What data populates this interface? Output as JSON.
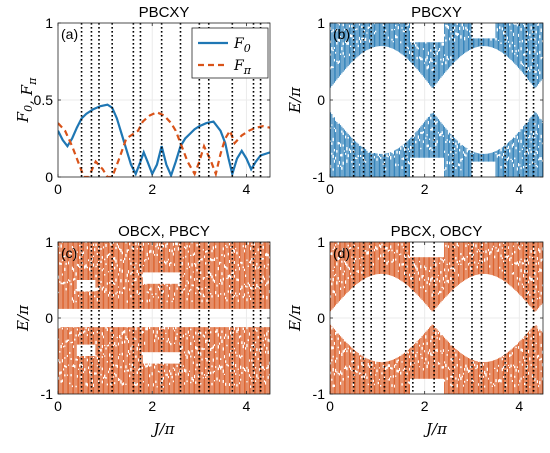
{
  "colors": {
    "blue": "#1f77b4",
    "orange": "#d95319",
    "black": "#000000"
  },
  "xlabel": "J/π",
  "xticks": [
    0,
    2,
    4
  ],
  "xlim": [
    0,
    4.5
  ],
  "vlines": [
    0.5,
    0.71,
    0.87,
    1.15,
    1.6,
    1.75,
    2.2,
    2.6,
    3.0,
    3.2,
    3.7,
    4.15,
    4.3
  ],
  "chart_data": [
    {
      "type": "line",
      "panel_label": "(a)",
      "title": "PBCXY",
      "ylabel": "F_0, F_π",
      "ylim": [
        0,
        1
      ],
      "yticks": [
        {
          "v": 0,
          "label": "0"
        },
        {
          "v": 0.5,
          "label": "0.5"
        },
        {
          "v": 1,
          "label": "1"
        }
      ],
      "legend_position": "top-right",
      "series": [
        {
          "name": "F0",
          "legend_text": "F_0",
          "style": "solid",
          "color": "#1f77b4",
          "x": [
            0,
            0.1,
            0.2,
            0.3,
            0.4,
            0.5,
            0.6,
            0.75,
            0.9,
            1.05,
            1.15,
            1.25,
            1.35,
            1.45,
            1.55,
            1.65,
            1.75,
            1.82,
            1.9,
            2.0,
            2.1,
            2.2,
            2.3,
            2.4,
            2.5,
            2.6,
            2.7,
            2.8,
            2.9,
            3.0,
            3.15,
            3.3,
            3.45,
            3.55,
            3.62,
            3.7,
            3.8,
            3.9,
            4.0,
            4.1,
            4.2,
            4.3,
            4.5
          ],
          "y": [
            0.3,
            0.24,
            0.2,
            0.25,
            0.32,
            0.38,
            0.41,
            0.44,
            0.46,
            0.47,
            0.45,
            0.38,
            0.28,
            0.18,
            0.08,
            0.02,
            0.1,
            0.16,
            0.1,
            0.02,
            0.08,
            0.2,
            0.08,
            0.01,
            0.1,
            0.2,
            0.25,
            0.28,
            0.31,
            0.33,
            0.35,
            0.36,
            0.3,
            0.22,
            0.12,
            0.02,
            0.12,
            0.17,
            0.12,
            0.05,
            0.1,
            0.14,
            0.16
          ]
        },
        {
          "name": "Fπ",
          "legend_text": "F_π",
          "style": "dashed",
          "color": "#d95319",
          "x": [
            0,
            0.15,
            0.3,
            0.45,
            0.55,
            0.65,
            0.8,
            0.95,
            1.05,
            1.15,
            1.3,
            1.45,
            1.6,
            1.7,
            1.8,
            1.95,
            2.1,
            2.25,
            2.4,
            2.5,
            2.6,
            2.75,
            2.9,
            3.0,
            3.1,
            3.25,
            3.35,
            3.45,
            3.55,
            3.65,
            3.75,
            3.9,
            4.05,
            4.2,
            4.35,
            4.5
          ],
          "y": [
            0.35,
            0.3,
            0.2,
            0.08,
            0.0,
            0.0,
            0.1,
            0.05,
            0.0,
            0.0,
            0.12,
            0.25,
            0.28,
            0.3,
            0.36,
            0.4,
            0.42,
            0.4,
            0.35,
            0.3,
            0.22,
            0.1,
            0.02,
            0.1,
            0.2,
            0.1,
            0.02,
            0.15,
            0.25,
            0.3,
            0.22,
            0.27,
            0.3,
            0.32,
            0.33,
            0.32
          ]
        }
      ]
    },
    {
      "type": "spectrum",
      "panel_label": "(b)",
      "title": "PBCXY",
      "ylabel": "E/π",
      "ylim": [
        -1,
        1
      ],
      "yticks": [
        {
          "v": -1,
          "label": "-1"
        },
        {
          "v": 0,
          "label": "0"
        },
        {
          "v": 1,
          "label": "1"
        }
      ],
      "color": "#1f77b4"
    },
    {
      "type": "spectrum",
      "panel_label": "(c)",
      "title": "OBCX, PBCY",
      "ylabel": "E/π",
      "ylim": [
        -1,
        1
      ],
      "yticks": [
        {
          "v": -1,
          "label": "-1"
        },
        {
          "v": 0,
          "label": "0"
        },
        {
          "v": 1,
          "label": "1"
        }
      ],
      "color": "#d95319"
    },
    {
      "type": "spectrum",
      "panel_label": "(d)",
      "title": "PBCX, OBCY",
      "ylabel": "E/π",
      "ylim": [
        -1,
        1
      ],
      "yticks": [
        {
          "v": -1,
          "label": "-1"
        },
        {
          "v": 0,
          "label": "0"
        },
        {
          "v": 1,
          "label": "1"
        }
      ],
      "color": "#d95319"
    }
  ]
}
